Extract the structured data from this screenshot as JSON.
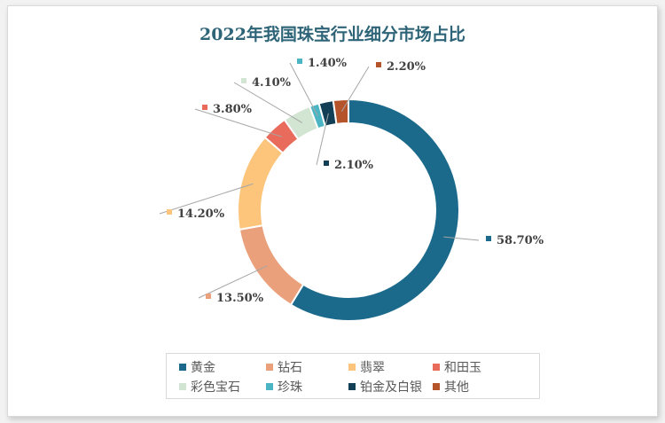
{
  "chart_data": {
    "type": "pie",
    "donut": true,
    "title": "2022年我国珠宝行业细分市场占比",
    "categories": [
      "黄金",
      "钻石",
      "翡翠",
      "和田玉",
      "彩色宝石",
      "珍珠",
      "铂金及白银",
      "其他"
    ],
    "values": [
      58.7,
      13.5,
      14.2,
      3.8,
      4.1,
      1.4,
      2.1,
      2.2
    ],
    "labels": [
      "58.70%",
      "13.50%",
      "14.20%",
      "3.80%",
      "4.10%",
      "1.40%",
      "2.10%",
      "2.20%"
    ],
    "colors": [
      "#1b6a8c",
      "#e9a07b",
      "#fdc57c",
      "#e86b5c",
      "#d2e4d2",
      "#4bb5c3",
      "#123f55",
      "#b5532a"
    ],
    "unit": "%",
    "legend": "bottom"
  }
}
